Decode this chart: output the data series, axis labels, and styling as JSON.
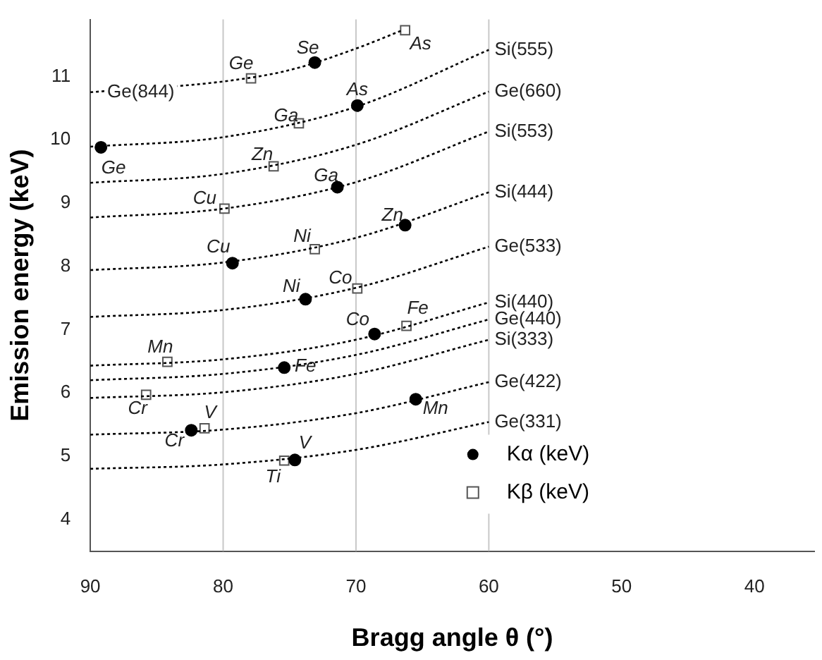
{
  "chart_data": {
    "type": "scatter",
    "xlabel": "Bragg angle θ (°)",
    "ylabel": "Emission energy (keV)",
    "xlim": [
      90,
      35.5
    ],
    "xticks": [
      90,
      80,
      70,
      60,
      50,
      40
    ],
    "ylim": [
      3.5,
      11.9
    ],
    "yticks": [
      4,
      5,
      6,
      7,
      8,
      9,
      10,
      11
    ],
    "grid": false,
    "legend": "bottom right",
    "line_style": "dotted",
    "ref_lines": [
      {
        "axis": "x",
        "value": 80,
        "color": "#c8c8c8"
      },
      {
        "axis": "x",
        "value": 70,
        "color": "#c8c8c8"
      },
      {
        "axis": "x",
        "value": 60,
        "color": "#c8c8c8"
      }
    ],
    "series": [
      {
        "type": "line",
        "name": "Ge(844)",
        "color": "#000000",
        "marker": "none",
        "x": [
          90,
          80,
          75,
          70,
          66.5
        ],
        "values": [
          10.75,
          10.92,
          11.1,
          11.44,
          11.73
        ]
      },
      {
        "type": "line",
        "name": "Si(555)",
        "color": "#000000",
        "marker": "none",
        "x": [
          90,
          80,
          70,
          60
        ],
        "values": [
          9.89,
          10.04,
          10.52,
          11.42
        ]
      },
      {
        "type": "line",
        "name": "Ge(660)",
        "color": "#000000",
        "marker": "none",
        "x": [
          90,
          80,
          70,
          60
        ],
        "values": [
          9.32,
          9.46,
          9.92,
          10.76
        ]
      },
      {
        "type": "line",
        "name": "Si(553)",
        "color": "#000000",
        "marker": "none",
        "x": [
          90,
          80,
          70,
          60
        ],
        "values": [
          8.77,
          8.91,
          9.33,
          10.13
        ]
      },
      {
        "type": "line",
        "name": "Si(444)",
        "color": "#000000",
        "marker": "none",
        "x": [
          90,
          80,
          70,
          60
        ],
        "values": [
          7.94,
          8.06,
          8.45,
          9.17
        ]
      },
      {
        "type": "line",
        "name": "Ge(533)",
        "color": "#000000",
        "marker": "none",
        "x": [
          90,
          80,
          70,
          60
        ],
        "values": [
          7.2,
          7.31,
          7.66,
          8.31
        ]
      },
      {
        "type": "line",
        "name": "Si(440)",
        "color": "#000000",
        "marker": "none",
        "x": [
          90,
          80,
          70,
          60
        ],
        "values": [
          6.43,
          6.53,
          6.84,
          7.43
        ]
      },
      {
        "type": "line",
        "name": "Ge(440)",
        "color": "#000000",
        "marker": "none",
        "x": [
          90,
          80,
          70,
          60
        ],
        "values": [
          6.2,
          6.3,
          6.6,
          7.16
        ]
      },
      {
        "type": "line",
        "name": "Si(333)",
        "color": "#000000",
        "marker": "none",
        "x": [
          90,
          80,
          70,
          60
        ],
        "values": [
          5.92,
          6.01,
          6.3,
          6.84
        ]
      },
      {
        "type": "line",
        "name": "Ge(422)",
        "color": "#000000",
        "marker": "none",
        "x": [
          90,
          80,
          70,
          60
        ],
        "values": [
          5.34,
          5.42,
          5.68,
          6.17
        ]
      },
      {
        "type": "line",
        "name": "Ge(331)",
        "color": "#000000",
        "marker": "none",
        "x": [
          90,
          80,
          70,
          60
        ],
        "values": [
          4.8,
          4.87,
          5.1,
          5.54
        ]
      },
      {
        "name": "Kα (keV)",
        "color": "#000000",
        "marker": "circle",
        "x": [
          89.2,
          73.1,
          69.9,
          71.4,
          66.3,
          79.3,
          73.8,
          68.6,
          75.4,
          65.5,
          82.4,
          74.6
        ],
        "values": [
          9.88,
          11.22,
          10.54,
          9.25,
          8.65,
          8.05,
          7.48,
          6.93,
          6.4,
          5.9,
          5.41,
          4.94
        ],
        "value_labels": [
          "Ge",
          "Se",
          "As",
          "Ga",
          "Zn",
          "Cu",
          "Ni",
          "Co",
          "Fe",
          "Mn",
          "Cr",
          "V"
        ]
      },
      {
        "name": "Kβ (keV)",
        "color": "#555555",
        "marker": "square",
        "x": [
          66.3,
          77.9,
          74.3,
          76.2,
          79.9,
          73.1,
          69.9,
          66.2,
          84.2,
          85.8,
          81.4,
          75.4
        ],
        "values": [
          11.73,
          10.97,
          10.26,
          9.58,
          8.91,
          8.27,
          7.65,
          7.06,
          6.49,
          5.97,
          5.44,
          4.93
        ],
        "value_labels": [
          "As",
          "Ge",
          "Ga",
          "Zn",
          "Cu",
          "Ni",
          "Co",
          "Fe",
          "Mn",
          "Cr",
          "V",
          "Ti"
        ]
      }
    ]
  }
}
